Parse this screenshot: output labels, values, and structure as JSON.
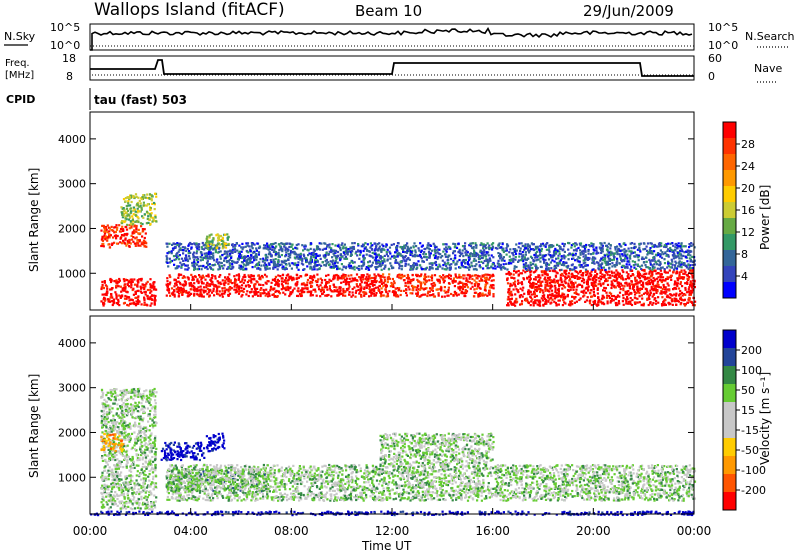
{
  "header": {
    "station": "Wallops Island (fitACF)",
    "beam": "Beam 10",
    "date": "29/Jun/2009"
  },
  "summary_panels": {
    "nsky_label": "N.Sky",
    "nsearch_label": "N.Search",
    "noise_left_ticks": [
      "10^5",
      "10^0"
    ],
    "noise_right_ticks": [
      "10^5",
      "10^0"
    ],
    "freq_label": "Freq.",
    "freq_unit": "[MHz]",
    "freq_ticks": [
      "18",
      "8"
    ],
    "nave_label": "Nave",
    "nave_ticks": [
      "60",
      "0"
    ],
    "cpid_label": "CPID",
    "cpid_value": "tau (fast) 503"
  },
  "chart_data": [
    {
      "type": "heatmap",
      "panel": "power",
      "ylabel": "Slant Range [km]",
      "xlabel": "Time UT",
      "x_ticks": [
        "00:00",
        "04:00",
        "08:00",
        "12:00",
        "16:00",
        "20:00",
        "00:00"
      ],
      "y_ticks": [
        "1000",
        "2000",
        "3000",
        "4000"
      ],
      "ylim": [
        180,
        4600
      ],
      "xlim_hours": [
        0,
        24
      ],
      "colorbar_label": "Power [dB]",
      "colorbar_ticks": [
        "28",
        "24",
        "20",
        "16",
        "12",
        "8",
        "4"
      ],
      "colorbar_colors": [
        "#ff0000",
        "#ff3300",
        "#ff6600",
        "#ff9900",
        "#ffcc00",
        "#cccc33",
        "#66aa44",
        "#339966",
        "#336699",
        "#3344bb",
        "#0000ff"
      ],
      "bands": [
        {
          "t0": 0.4,
          "t1": 2.6,
          "r0": 300,
          "r1": 900,
          "level": 0
        },
        {
          "t0": 0.4,
          "t1": 2.2,
          "r0": 1600,
          "r1": 2100,
          "level": 1
        },
        {
          "t0": 1.2,
          "t1": 2.6,
          "r0": 2100,
          "r1": 2800,
          "level": 6
        },
        {
          "t0": 3.0,
          "t1": 11.5,
          "r0": 500,
          "r1": 1000,
          "level": 0
        },
        {
          "t0": 11.5,
          "t1": 16.0,
          "r0": 500,
          "r1": 1000,
          "level": 1
        },
        {
          "t0": 16.5,
          "t1": 24.0,
          "r0": 300,
          "r1": 1100,
          "level": 0
        },
        {
          "t0": 3.0,
          "t1": 24.0,
          "r0": 1100,
          "r1": 1700,
          "level": 9
        },
        {
          "t0": 4.5,
          "t1": 5.5,
          "r0": 1550,
          "r1": 1900,
          "level": 6
        }
      ]
    },
    {
      "type": "heatmap",
      "panel": "velocity",
      "ylabel": "Slant Range [km]",
      "xlabel": "Time UT",
      "x_ticks": [
        "00:00",
        "04:00",
        "08:00",
        "12:00",
        "16:00",
        "20:00",
        "00:00"
      ],
      "y_ticks": [
        "1000",
        "2000",
        "3000",
        "4000"
      ],
      "ylim": [
        180,
        4600
      ],
      "xlim_hours": [
        0,
        24
      ],
      "colorbar_label": "Velocity [m s⁻¹]",
      "colorbar_ticks": [
        "200",
        "100",
        "50",
        "15",
        "-15",
        "-50",
        "-100",
        "-200"
      ],
      "colorbar_colors": [
        "#0000cc",
        "#224499",
        "#338844",
        "#66cc33",
        "#c8c8c8",
        "#c8c8c8",
        "#ffcc00",
        "#ff9900",
        "#ff5500",
        "#ff0000"
      ],
      "bands": [
        {
          "t0": 0.4,
          "t1": 2.6,
          "r0": 300,
          "r1": 3000,
          "level": 4
        },
        {
          "t0": 0.4,
          "t1": 1.3,
          "r0": 1600,
          "r1": 2000,
          "level": 7
        },
        {
          "t0": 2.8,
          "t1": 4.5,
          "r0": 1400,
          "r1": 1800,
          "level": 0
        },
        {
          "t0": 4.6,
          "t1": 5.3,
          "r0": 1600,
          "r1": 2000,
          "level": 0
        },
        {
          "t0": 3.0,
          "t1": 7.0,
          "r0": 700,
          "r1": 1200,
          "level": 3
        },
        {
          "t0": 3.0,
          "t1": 24.0,
          "r0": 500,
          "r1": 1300,
          "level": 4
        },
        {
          "t0": 11.5,
          "t1": 16.0,
          "r0": 1300,
          "r1": 2000,
          "level": 4
        },
        {
          "t0": 0.0,
          "t1": 24.0,
          "r0": 180,
          "r1": 260,
          "level": 0
        }
      ]
    }
  ]
}
